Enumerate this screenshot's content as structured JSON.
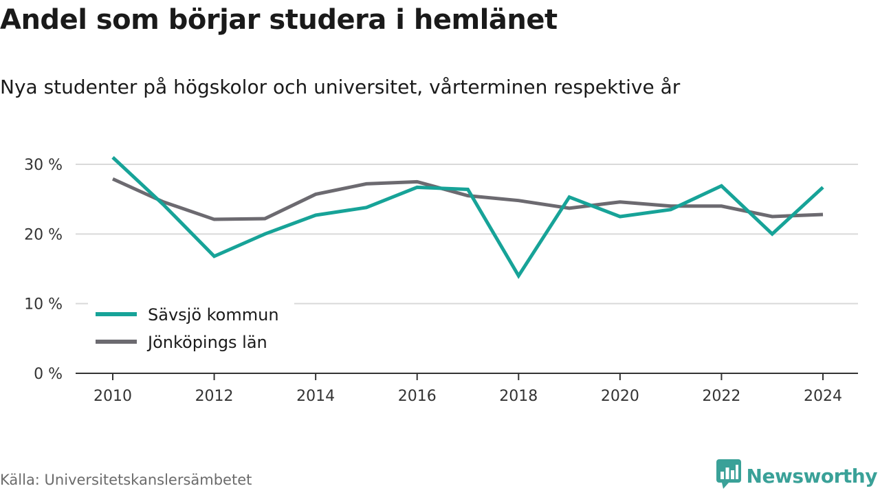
{
  "header": {
    "title": "Andel som börjar studera i hemlänet",
    "subtitle": "Nya studenter på högskolor och universitet, vårterminen respektive år"
  },
  "footer": {
    "source": "Källa: Universitetskanslersämbetet",
    "brand": "Newsworthy",
    "brand_icon": "bar-chart-speech-bubble-icon",
    "brand_color": "#3aa198"
  },
  "chart_data": {
    "type": "line",
    "title": "Andel som börjar studera i hemlänet",
    "subtitle": "Nya studenter på högskolor och universitet, vårterminen respektive år",
    "xlabel": "",
    "ylabel": "",
    "x": [
      2010,
      2011,
      2012,
      2013,
      2014,
      2015,
      2016,
      2017,
      2018,
      2019,
      2020,
      2021,
      2022,
      2023,
      2024
    ],
    "x_ticks": [
      "2010",
      "2012",
      "2014",
      "2016",
      "2018",
      "2020",
      "2022",
      "2024"
    ],
    "y_ticks": [
      "0 %",
      "10 %",
      "20 %",
      "30 %"
    ],
    "ylim": [
      0,
      30
    ],
    "grid": true,
    "legend_position": "bottom-left",
    "series": [
      {
        "name": "Sävsjö kommun",
        "color": "#17a398",
        "values": [
          31.0,
          24.2,
          16.8,
          20.0,
          22.7,
          23.8,
          26.7,
          26.4,
          14.0,
          25.3,
          22.5,
          23.5,
          26.9,
          20.0,
          26.7
        ]
      },
      {
        "name": "Jönköpings län",
        "color": "#6c6a70",
        "values": [
          27.9,
          24.6,
          22.1,
          22.2,
          25.7,
          27.2,
          27.5,
          25.5,
          24.8,
          23.7,
          24.6,
          24.0,
          24.0,
          22.5,
          22.8
        ]
      }
    ]
  }
}
